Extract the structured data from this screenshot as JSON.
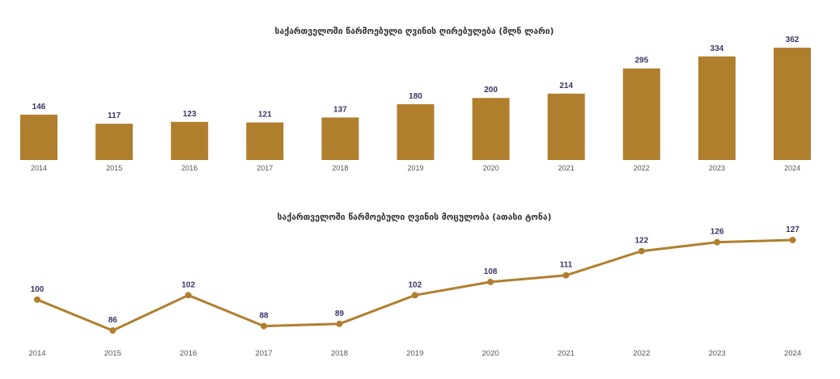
{
  "chart_data": [
    {
      "type": "bar",
      "title": "საქართველოში წარმოებული ღვინის ღირებულება (მლნ ლარი)",
      "categories": [
        "2014",
        "2015",
        "2016",
        "2017",
        "2018",
        "2019",
        "2020",
        "2021",
        "2022",
        "2023",
        "2024"
      ],
      "values": [
        146,
        117,
        123,
        121,
        137,
        180,
        200,
        214,
        295,
        334,
        362
      ],
      "data_labels": [
        "146",
        "117",
        "123",
        "121",
        "137",
        "180",
        "200",
        "214",
        "295",
        "334",
        "362"
      ],
      "ylim": [
        0,
        362
      ],
      "color": "#b07f2e",
      "label_color": "#3a3565",
      "grid": false,
      "legend": "none"
    },
    {
      "type": "line",
      "title": "საქართველოში წარმოებული ღვინის მოცულობა (ათასი ტონა)",
      "categories": [
        "2014",
        "2015",
        "2016",
        "2017",
        "2018",
        "2019",
        "2020",
        "2021",
        "2022",
        "2023",
        "2024"
      ],
      "values": [
        100,
        86,
        102,
        88,
        89,
        102,
        108,
        111,
        122,
        126,
        127
      ],
      "data_labels": [
        "100",
        "86",
        "102",
        "88",
        "89",
        "102",
        "108",
        "111",
        "122",
        "126",
        "127"
      ],
      "ylim": [
        86,
        127
      ],
      "color": "#b07f2e",
      "label_color": "#3a3565",
      "grid": false,
      "legend": "none"
    }
  ]
}
